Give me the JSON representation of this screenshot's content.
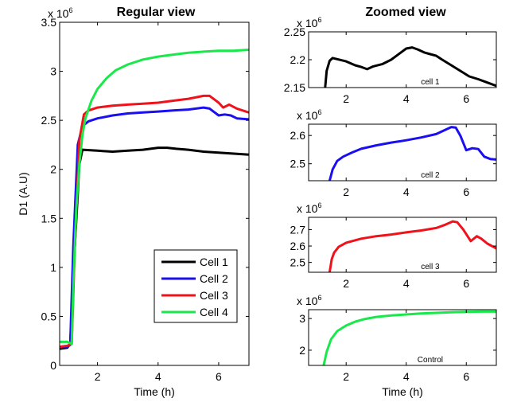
{
  "chart_data": [
    {
      "id": "regular",
      "type": "line",
      "title": "Regular view",
      "xlabel": "Time (h)",
      "ylabel": "D1 (A.U)",
      "exponent_label": "x 10",
      "exponent_power": "6",
      "xlim": [
        0.75,
        7
      ],
      "ylim": [
        0,
        3.5
      ],
      "xticks": [
        2,
        4,
        6
      ],
      "yticks": [
        0,
        0.5,
        1,
        1.5,
        2,
        2.5,
        3,
        3.5
      ],
      "ytick_labels": [
        "0",
        "0.5",
        "1",
        "1.5",
        "2",
        "2.5",
        "3",
        "3.5"
      ],
      "legend": {
        "placement": "bottom-right",
        "entries": [
          "Cell 1",
          "Cell 2",
          "Cell 3",
          "Cell 4"
        ]
      },
      "series": [
        {
          "name": "Cell 1",
          "color": "#000000",
          "x": [
            0.75,
            1.0,
            1.1,
            1.25,
            1.4,
            1.5,
            2.0,
            2.5,
            3.0,
            3.5,
            4.0,
            4.3,
            4.6,
            5.0,
            5.5,
            6.0,
            6.5,
            7.0
          ],
          "y": [
            0.17,
            0.18,
            0.22,
            1.2,
            2.05,
            2.2,
            2.19,
            2.18,
            2.19,
            2.2,
            2.22,
            2.22,
            2.21,
            2.2,
            2.18,
            2.17,
            2.16,
            2.15
          ]
        },
        {
          "name": "Cell 2",
          "color": "#1a0ff0",
          "x": [
            0.75,
            1.0,
            1.1,
            1.2,
            1.35,
            1.5,
            1.7,
            2.0,
            2.5,
            3.0,
            3.5,
            4.0,
            4.5,
            5.0,
            5.5,
            5.7,
            6.0,
            6.2,
            6.4,
            6.6,
            7.0
          ],
          "y": [
            0.18,
            0.19,
            0.21,
            1.2,
            2.25,
            2.44,
            2.49,
            2.52,
            2.55,
            2.57,
            2.58,
            2.59,
            2.6,
            2.61,
            2.63,
            2.62,
            2.55,
            2.56,
            2.55,
            2.52,
            2.51
          ]
        },
        {
          "name": "Cell 3",
          "color": "#f0121a",
          "x": [
            0.75,
            1.0,
            1.15,
            1.25,
            1.4,
            1.55,
            1.7,
            2.0,
            2.5,
            3.0,
            3.5,
            4.0,
            4.5,
            5.0,
            5.5,
            5.7,
            6.0,
            6.15,
            6.35,
            6.6,
            7.0
          ],
          "y": [
            0.19,
            0.2,
            0.22,
            1.2,
            2.3,
            2.56,
            2.6,
            2.63,
            2.65,
            2.66,
            2.67,
            2.68,
            2.7,
            2.72,
            2.75,
            2.75,
            2.68,
            2.63,
            2.66,
            2.62,
            2.58
          ]
        },
        {
          "name": "Cell 4",
          "color": "#19e84a",
          "x": [
            0.75,
            1.0,
            1.15,
            1.2,
            1.3,
            1.4,
            1.5,
            1.6,
            1.8,
            2.0,
            2.3,
            2.6,
            3.0,
            3.5,
            4.0,
            4.5,
            5.0,
            5.5,
            6.0,
            6.5,
            7.0
          ],
          "y": [
            0.24,
            0.24,
            0.22,
            0.8,
            1.6,
            2.05,
            2.35,
            2.52,
            2.7,
            2.82,
            2.93,
            3.01,
            3.07,
            3.12,
            3.15,
            3.17,
            3.19,
            3.2,
            3.21,
            3.21,
            3.22
          ]
        }
      ]
    },
    {
      "id": "zoom1",
      "type": "line",
      "title": "Zoomed view",
      "exponent_label": "x 10",
      "exponent_power": "6",
      "annotation": "cell 1",
      "xlim": [
        0.75,
        7
      ],
      "ylim": [
        2.15,
        2.25
      ],
      "xticks": [
        2,
        4,
        6
      ],
      "yticks": [
        2.15,
        2.2,
        2.25
      ],
      "ytick_labels": [
        "2.15",
        "2.2",
        "2.25"
      ],
      "series": [
        {
          "name": "cell 1",
          "color": "#000000",
          "x": [
            1.3,
            1.35,
            1.45,
            1.55,
            1.7,
            2.0,
            2.3,
            2.5,
            2.7,
            2.9,
            3.2,
            3.5,
            3.8,
            4.0,
            4.2,
            4.4,
            4.6,
            4.8,
            5.0,
            5.2,
            5.5,
            5.8,
            6.1,
            6.4,
            6.7,
            7.0
          ],
          "y": [
            2.15,
            2.18,
            2.198,
            2.203,
            2.201,
            2.197,
            2.19,
            2.187,
            2.183,
            2.188,
            2.192,
            2.2,
            2.212,
            2.22,
            2.222,
            2.218,
            2.213,
            2.21,
            2.207,
            2.2,
            2.19,
            2.18,
            2.17,
            2.165,
            2.159,
            2.153
          ]
        }
      ]
    },
    {
      "id": "zoom2",
      "type": "line",
      "exponent_label": "x 10",
      "exponent_power": "6",
      "annotation": "cell 2",
      "xlim": [
        0.75,
        7
      ],
      "ylim": [
        2.44,
        2.64
      ],
      "xticks": [
        2,
        4,
        6
      ],
      "yticks": [
        2.5,
        2.6
      ],
      "ytick_labels": [
        "2.5",
        "2.6"
      ],
      "series": [
        {
          "name": "cell 2",
          "color": "#1a0ff0",
          "x": [
            1.45,
            1.55,
            1.7,
            1.9,
            2.2,
            2.5,
            3.0,
            3.5,
            4.0,
            4.5,
            5.0,
            5.3,
            5.5,
            5.65,
            5.8,
            6.0,
            6.2,
            6.4,
            6.6,
            6.8,
            7.0
          ],
          "y": [
            2.44,
            2.48,
            2.51,
            2.525,
            2.54,
            2.553,
            2.565,
            2.575,
            2.583,
            2.593,
            2.605,
            2.62,
            2.63,
            2.628,
            2.6,
            2.548,
            2.555,
            2.552,
            2.525,
            2.517,
            2.515
          ]
        }
      ]
    },
    {
      "id": "zoom3",
      "type": "line",
      "exponent_label": "x 10",
      "exponent_power": "6",
      "annotation": "cell 3",
      "xlim": [
        0.75,
        7
      ],
      "ylim": [
        2.44,
        2.775
      ],
      "xticks": [
        2,
        4,
        6
      ],
      "yticks": [
        2.5,
        2.6,
        2.7
      ],
      "ytick_labels": [
        "2.5",
        "2.6",
        "2.7"
      ],
      "series": [
        {
          "name": "cell 3",
          "color": "#f0121a",
          "x": [
            1.45,
            1.52,
            1.6,
            1.75,
            2.0,
            2.5,
            3.0,
            3.5,
            4.0,
            4.5,
            5.0,
            5.3,
            5.55,
            5.7,
            5.9,
            6.15,
            6.35,
            6.5,
            6.7,
            7.0
          ],
          "y": [
            2.44,
            2.52,
            2.56,
            2.595,
            2.62,
            2.645,
            2.66,
            2.67,
            2.683,
            2.695,
            2.71,
            2.73,
            2.75,
            2.745,
            2.7,
            2.63,
            2.66,
            2.645,
            2.615,
            2.585
          ]
        }
      ]
    },
    {
      "id": "zoom4",
      "type": "line",
      "exponent_label": "x 10",
      "exponent_power": "6",
      "annotation": "Control",
      "xlabel": "Time (h)",
      "xlim": [
        0.75,
        7
      ],
      "ylim": [
        1.52,
        3.28
      ],
      "xticks": [
        2,
        4,
        6
      ],
      "yticks": [
        2,
        3
      ],
      "ytick_labels": [
        "2",
        "3"
      ],
      "series": [
        {
          "name": "Control",
          "color": "#19e84a",
          "x": [
            1.25,
            1.35,
            1.5,
            1.7,
            2.0,
            2.3,
            2.6,
            3.0,
            3.5,
            4.0,
            4.5,
            5.0,
            5.5,
            6.0,
            6.5,
            7.0
          ],
          "y": [
            1.52,
            1.95,
            2.35,
            2.6,
            2.78,
            2.9,
            2.98,
            3.05,
            3.1,
            3.13,
            3.16,
            3.18,
            3.2,
            3.21,
            3.22,
            3.22
          ]
        }
      ]
    }
  ]
}
